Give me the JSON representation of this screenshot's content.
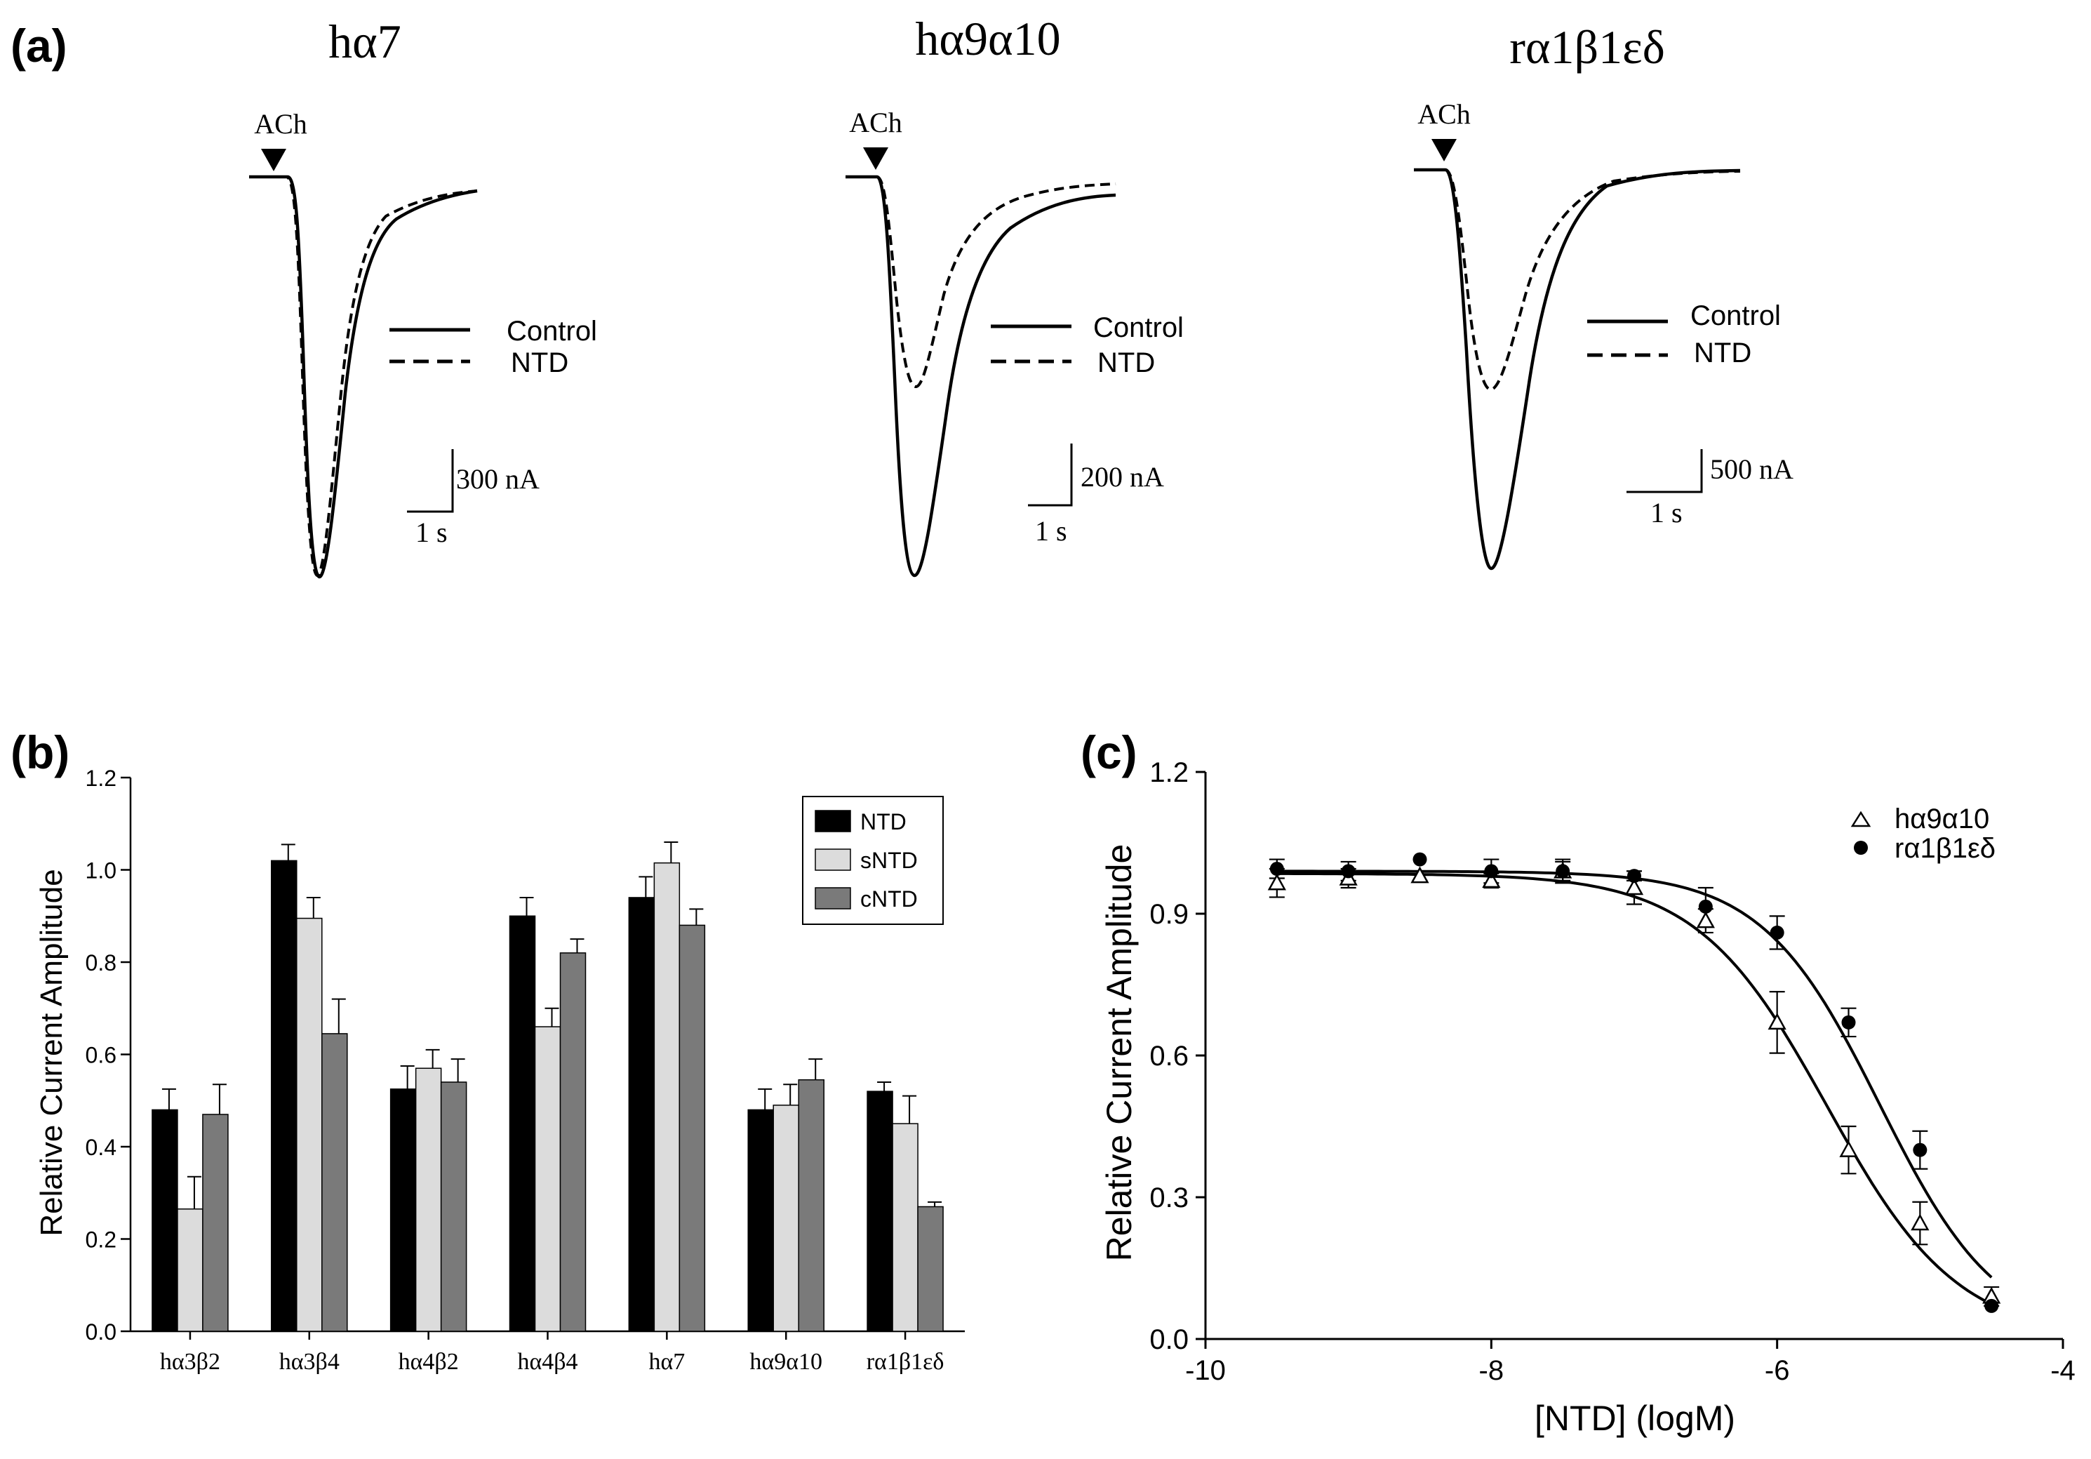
{
  "panels": {
    "a": {
      "label": "(a)",
      "traces": [
        {
          "title": "hα7",
          "stimulus": "ACh",
          "legend": [
            "Control",
            "NTD"
          ],
          "scale_current": "300 nA",
          "scale_time": "1 s"
        },
        {
          "title": "hα9α10",
          "stimulus": "ACh",
          "legend": [
            "Control",
            "NTD"
          ],
          "scale_current": "200 nA",
          "scale_time": "1 s"
        },
        {
          "title": "rα1β1εδ",
          "stimulus": "ACh",
          "legend": [
            "Control",
            "NTD"
          ],
          "scale_current": "500 nA",
          "scale_time": "1 s"
        }
      ]
    },
    "b": {
      "label": "(b)"
    },
    "c": {
      "label": "(c)"
    }
  },
  "chart_data": [
    {
      "panel": "b",
      "type": "bar",
      "title": "",
      "xlabel": "",
      "ylabel": "Relative Current Amplitude",
      "ylim": [
        0,
        1.2
      ],
      "yticks": [
        0.0,
        0.2,
        0.4,
        0.6,
        0.8,
        1.0,
        1.2
      ],
      "ytick_labels": [
        "0.0",
        "0.2",
        "0.4",
        "0.6",
        "0.8",
        "1.0",
        "1.2"
      ],
      "categories": [
        "hα3β2",
        "hα3β4",
        "hα4β2",
        "hα4β4",
        "hα7",
        "hα9α10",
        "rα1β1εδ"
      ],
      "series": [
        {
          "name": "NTD",
          "color": "#000000",
          "values": [
            0.48,
            1.02,
            0.525,
            0.9,
            0.94,
            0.48,
            0.52
          ],
          "errors": [
            0.045,
            0.035,
            0.05,
            0.04,
            0.045,
            0.045,
            0.02
          ]
        },
        {
          "name": "sNTD",
          "color": "#dcdcdc",
          "values": [
            0.265,
            0.895,
            0.57,
            0.66,
            1.015,
            0.49,
            0.45
          ],
          "errors": [
            0.07,
            0.045,
            0.04,
            0.04,
            0.045,
            0.045,
            0.06
          ]
        },
        {
          "name": "cNTD",
          "color": "#7a7a7a",
          "values": [
            0.47,
            0.645,
            0.54,
            0.82,
            0.88,
            0.545,
            0.27
          ],
          "errors": [
            0.065,
            0.075,
            0.05,
            0.03,
            0.035,
            0.045,
            0.01
          ]
        }
      ],
      "legend_position": "top-right"
    },
    {
      "panel": "c",
      "type": "scatter",
      "title": "",
      "xlabel": "[NTD] (logM)",
      "ylabel": "Relative Current Amplitude",
      "xlim": [
        -10,
        -4
      ],
      "ylim": [
        0.0,
        1.2
      ],
      "xticks": [
        -10,
        -8,
        -6,
        -4
      ],
      "xtick_labels": [
        "-10",
        "-8",
        "-6",
        "-4"
      ],
      "yticks": [
        0.0,
        0.3,
        0.6,
        0.9,
        1.2
      ],
      "ytick_labels": [
        "0.0",
        "0.3",
        "0.6",
        "0.9",
        "1.2"
      ],
      "series": [
        {
          "name": "hα9α10",
          "marker": "open-triangle",
          "x": [
            -9.5,
            -9.0,
            -8.5,
            -8.0,
            -7.5,
            -7.0,
            -6.5,
            -6.0,
            -5.5,
            -5.0,
            -4.5
          ],
          "y": [
            0.965,
            0.975,
            0.98,
            0.97,
            0.99,
            0.955,
            0.885,
            0.67,
            0.4,
            0.245,
            0.09
          ],
          "errors": [
            0.03,
            0.02,
            0.01,
            0.015,
            0.02,
            0.035,
            0.025,
            0.065,
            0.05,
            0.045,
            0.02
          ],
          "fit": {
            "top": 0.985,
            "bottom": 0.0,
            "logIC50": -5.65,
            "hill": 0.95
          }
        },
        {
          "name": "rα1β1εδ",
          "marker": "filled-circle",
          "x": [
            -9.5,
            -9.0,
            -8.5,
            -8.0,
            -7.5,
            -7.0,
            -6.5,
            -6.0,
            -5.5,
            -5.0,
            -4.5
          ],
          "y": [
            0.995,
            0.99,
            1.015,
            0.99,
            0.99,
            0.98,
            0.915,
            0.86,
            0.67,
            0.4,
            0.07
          ],
          "errors": [
            0.02,
            0.02,
            0.0,
            0.025,
            0.025,
            0.01,
            0.04,
            0.035,
            0.03,
            0.04,
            0.0
          ],
          "fit": {
            "top": 0.99,
            "bottom": 0.0,
            "logIC50": -5.28,
            "hill": 1.05
          }
        }
      ],
      "legend_position": "top-right"
    }
  ]
}
